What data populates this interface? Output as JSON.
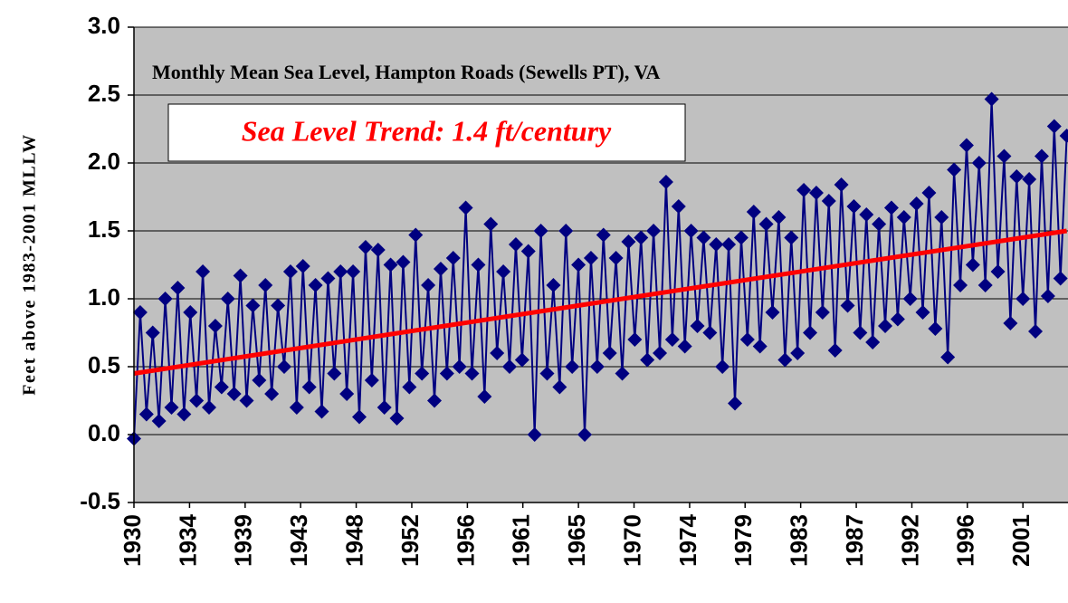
{
  "chart_data": {
    "type": "line",
    "title": "Monthly Mean Sea Level, Hampton Roads (Sewells PT), VA",
    "annotation": "Sea Level Trend: 1.4 ft/century",
    "y_label": "Feet above 1983-2001 MLLW",
    "xlim": [
      1930,
      2004.6
    ],
    "ylim": [
      -0.5,
      3.0
    ],
    "yticks": [
      {
        "value": -0.5,
        "label": "-0.5"
      },
      {
        "value": 0,
        "label": "0.0"
      },
      {
        "value": 0.5,
        "label": "0.5"
      },
      {
        "value": 1,
        "label": "1.0"
      },
      {
        "value": 1.5,
        "label": "1.5"
      },
      {
        "value": 2,
        "label": "2.0"
      },
      {
        "value": 2.5,
        "label": "2.5"
      },
      {
        "value": 3,
        "label": "3.0"
      }
    ],
    "xticks": [
      1930,
      {
        "value": 1934.44,
        "label": "1934"
      },
      {
        "value": 1938.88,
        "label": "1939"
      },
      {
        "value": 1943.31,
        "label": "1943"
      },
      {
        "value": 1947.75,
        "label": "1948"
      },
      {
        "value": 1952.19,
        "label": "1952"
      },
      {
        "value": 1956.63,
        "label": "1956"
      },
      {
        "value": 1961.06,
        "label": "1961"
      },
      {
        "value": 1965.5,
        "label": "1965"
      },
      {
        "value": 1969.94,
        "label": "1970"
      },
      {
        "value": 1974.38,
        "label": "1974"
      },
      {
        "value": 1978.81,
        "label": "1979"
      },
      {
        "value": 1983.25,
        "label": "1983"
      },
      {
        "value": 1987.69,
        "label": "1987"
      },
      {
        "value": 1992.13,
        "label": "1992"
      },
      {
        "value": 1996.56,
        "label": "1996"
      },
      2001
    ],
    "grid": true,
    "series": [
      {
        "color": "#000080",
        "x": [
          1930,
          1930.5,
          1931,
          1931.5,
          1932,
          1932.5,
          1933,
          1933.5,
          1934,
          1934.5,
          1935,
          1935.5,
          1936,
          1936.5,
          1937,
          1937.5,
          1938,
          1938.5,
          1939,
          1939.5,
          1940,
          1940.5,
          1941,
          1941.5,
          1942,
          1942.5,
          1943,
          1943.5,
          1944,
          1944.5,
          1945,
          1945.5,
          1946,
          1946.5,
          1947,
          1947.5,
          1948,
          1948.5,
          1949,
          1949.5,
          1950,
          1950.5,
          1951,
          1951.5,
          1952,
          1952.5,
          1953,
          1953.5,
          1954,
          1954.5,
          1955,
          1955.5,
          1956,
          1956.5,
          1957,
          1957.5,
          1958,
          1958.5,
          1959,
          1959.5,
          1960,
          1960.5,
          1961,
          1961.5,
          1962,
          1962.5,
          1963,
          1963.5,
          1964,
          1964.5,
          1965,
          1965.5,
          1966,
          1966.5,
          1967,
          1967.5,
          1968,
          1968.5,
          1969,
          1969.5,
          1970,
          1970.5,
          1971,
          1971.5,
          1972,
          1972.5,
          1973,
          1973.5,
          1974,
          1974.5,
          1975,
          1975.5,
          1976,
          1976.5,
          1977,
          1977.5,
          1978,
          1978.5,
          1979,
          1979.5,
          1980,
          1980.5,
          1981,
          1981.5,
          1982,
          1982.5,
          1983,
          1983.5,
          1984,
          1984.5,
          1985,
          1985.5,
          1986,
          1986.5,
          1987,
          1987.5,
          1988,
          1988.5,
          1989,
          1989.5,
          1990,
          1990.5,
          1991,
          1991.5,
          1992,
          1992.5,
          1993,
          1993.5,
          1994,
          1994.5,
          1995,
          1995.5,
          1996,
          1996.5,
          1997,
          1997.5,
          1998,
          1998.5,
          1999,
          1999.5,
          2000,
          2000.5,
          2001,
          2001.5,
          2002,
          2002.5,
          2003,
          2003.5,
          2004,
          2004.5
        ],
        "values": [
          -0.03,
          0.9,
          0.15,
          0.75,
          0.1,
          1.0,
          0.2,
          1.08,
          0.15,
          0.9,
          0.25,
          1.2,
          0.2,
          0.8,
          0.35,
          1.0,
          0.3,
          1.17,
          0.25,
          0.95,
          0.4,
          1.1,
          0.3,
          0.95,
          0.5,
          1.2,
          0.2,
          1.24,
          0.35,
          1.1,
          0.17,
          1.15,
          0.45,
          1.2,
          0.3,
          1.2,
          0.13,
          1.38,
          0.4,
          1.36,
          0.2,
          1.25,
          0.12,
          1.27,
          0.35,
          1.47,
          0.45,
          1.1,
          0.25,
          1.22,
          0.45,
          1.3,
          0.5,
          1.67,
          0.45,
          1.25,
          0.28,
          1.55,
          0.6,
          1.2,
          0.5,
          1.4,
          0.55,
          1.35,
          0.0,
          1.5,
          0.45,
          1.1,
          0.35,
          1.5,
          0.5,
          1.25,
          0.0,
          1.3,
          0.5,
          1.47,
          0.6,
          1.3,
          0.45,
          1.42,
          0.7,
          1.45,
          0.55,
          1.5,
          0.6,
          1.86,
          0.7,
          1.68,
          0.65,
          1.5,
          0.8,
          1.45,
          0.75,
          1.4,
          0.5,
          1.4,
          0.23,
          1.45,
          0.7,
          1.64,
          0.65,
          1.55,
          0.9,
          1.6,
          0.55,
          1.45,
          0.6,
          1.8,
          0.75,
          1.78,
          0.9,
          1.72,
          0.62,
          1.84,
          0.95,
          1.68,
          0.75,
          1.62,
          0.68,
          1.55,
          0.8,
          1.67,
          0.85,
          1.6,
          1.0,
          1.7,
          0.9,
          1.78,
          0.78,
          1.6,
          0.57,
          1.95,
          1.1,
          2.13,
          1.25,
          2.0,
          1.1,
          2.47,
          1.2,
          2.05,
          0.82,
          1.9,
          1.0,
          1.88,
          0.76,
          2.05,
          1.02,
          2.27,
          1.15,
          2.2
        ]
      }
    ],
    "trend": {
      "color": "#ff0000",
      "x": [
        1930,
        2004.5
      ],
      "values": [
        0.45,
        1.5
      ]
    }
  }
}
